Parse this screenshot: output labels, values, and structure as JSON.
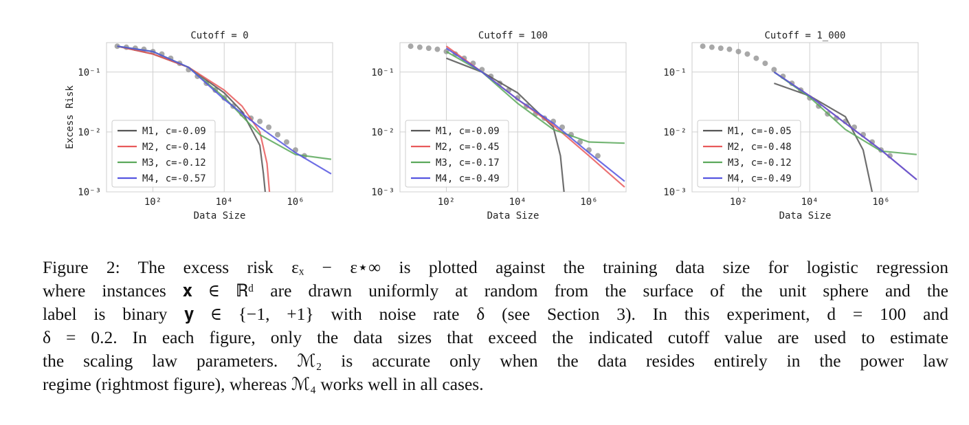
{
  "chart_data": [
    {
      "type": "line",
      "title": "Cutoff = 0",
      "xlabel": "Data Size",
      "ylabel": "Excess Risk",
      "xscale": "log",
      "yscale": "log",
      "grid": true,
      "legend": "lower left",
      "xlim": [
        5,
        11000000
      ],
      "ylim": [
        0.001,
        0.31
      ],
      "xticks": [
        {
          "value": 100,
          "label": "10²"
        },
        {
          "value": 10000,
          "label": "10⁴"
        },
        {
          "value": 1000000,
          "label": "10⁶"
        }
      ],
      "yticks": [
        {
          "value": 0.001,
          "label": "10⁻³"
        },
        {
          "value": 0.01,
          "label": "10⁻²"
        },
        {
          "value": 0.1,
          "label": "10⁻¹"
        }
      ],
      "points": {
        "color": "#999999",
        "x": [
          10,
          18,
          32,
          56,
          100,
          178,
          316,
          562,
          1000,
          1778,
          3162,
          5623,
          10000,
          17783,
          31623,
          56234,
          100000,
          177828,
          316228,
          562341,
          1000000,
          1778279
        ],
        "values": [
          0.27,
          0.26,
          0.25,
          0.24,
          0.22,
          0.2,
          0.17,
          0.14,
          0.11,
          0.085,
          0.065,
          0.05,
          0.037,
          0.027,
          0.02,
          0.017,
          0.015,
          0.012,
          0.009,
          0.0068,
          0.005,
          0.004
        ]
      },
      "series": [
        {
          "name": "M1, c=-0.09",
          "color": "#555555",
          "x": [
            10,
            100,
            1000,
            10000,
            31623,
            100000,
            125893,
            141254
          ],
          "values": [
            0.27,
            0.2,
            0.12,
            0.045,
            0.022,
            0.006,
            0.002,
            0.001
          ]
        },
        {
          "name": "M2, c=-0.14",
          "color": "#e8595a",
          "x": [
            10,
            100,
            1000,
            10000,
            31623,
            100000,
            158489,
            186209
          ],
          "values": [
            0.27,
            0.2,
            0.12,
            0.05,
            0.027,
            0.01,
            0.003,
            0.001
          ]
        },
        {
          "name": "M3, c=-0.12",
          "color": "#5aa85a",
          "x": [
            10,
            100,
            1000,
            10000,
            100000,
            1000000,
            10000000
          ],
          "values": [
            0.27,
            0.22,
            0.12,
            0.038,
            0.009,
            0.0042,
            0.0035
          ]
        },
        {
          "name": "M4, c=-0.57",
          "color": "#5555e0",
          "x": [
            10,
            100,
            1000,
            10000,
            100000,
            1000000,
            10000000
          ],
          "values": [
            0.27,
            0.22,
            0.12,
            0.035,
            0.012,
            0.0045,
            0.002
          ]
        }
      ]
    },
    {
      "type": "line",
      "title": "Cutoff = 100",
      "xlabel": "Data Size",
      "xscale": "log",
      "yscale": "log",
      "grid": true,
      "legend": "lower left",
      "xlim": [
        5,
        11000000
      ],
      "ylim": [
        0.001,
        0.31
      ],
      "xticks": [
        {
          "value": 100,
          "label": "10²"
        },
        {
          "value": 10000,
          "label": "10⁴"
        },
        {
          "value": 1000000,
          "label": "10⁶"
        }
      ],
      "yticks": [
        {
          "value": 0.001,
          "label": "10⁻³"
        },
        {
          "value": 0.01,
          "label": "10⁻²"
        },
        {
          "value": 0.1,
          "label": "10⁻¹"
        }
      ],
      "points": {
        "color": "#999999",
        "x": [
          10,
          18,
          32,
          56,
          100,
          178,
          316,
          562,
          1000,
          1778,
          3162,
          5623,
          10000,
          17783,
          31623,
          56234,
          100000,
          177828,
          316228,
          562341,
          1000000,
          1778279
        ],
        "values": [
          0.27,
          0.26,
          0.25,
          0.24,
          0.22,
          0.2,
          0.17,
          0.14,
          0.11,
          0.085,
          0.065,
          0.05,
          0.037,
          0.027,
          0.02,
          0.017,
          0.015,
          0.012,
          0.009,
          0.0068,
          0.005,
          0.004
        ]
      },
      "series": [
        {
          "name": "M1, c=-0.09",
          "color": "#555555",
          "x": [
            100,
            1000,
            10000,
            100000,
            158489,
            199526
          ],
          "values": [
            0.17,
            0.1,
            0.045,
            0.012,
            0.004,
            0.001
          ]
        },
        {
          "name": "M2, c=-0.45",
          "color": "#e8595a",
          "x": [
            100,
            1000,
            10000,
            100000,
            1000000,
            10000000
          ],
          "values": [
            0.27,
            0.1,
            0.035,
            0.013,
            0.004,
            0.0012
          ]
        },
        {
          "name": "M3, c=-0.17",
          "color": "#5aa85a",
          "x": [
            100,
            1000,
            10000,
            100000,
            1000000,
            10000000
          ],
          "values": [
            0.22,
            0.1,
            0.03,
            0.011,
            0.0068,
            0.0065
          ]
        },
        {
          "name": "M4, c=-0.49",
          "color": "#5555e0",
          "x": [
            100,
            1000,
            10000,
            100000,
            1000000,
            10000000
          ],
          "values": [
            0.25,
            0.1,
            0.035,
            0.014,
            0.0045,
            0.0015
          ]
        }
      ]
    },
    {
      "type": "line",
      "title": "Cutoff = 1_000",
      "xlabel": "Data Size",
      "xscale": "log",
      "yscale": "log",
      "grid": true,
      "legend": "lower left",
      "xlim": [
        5,
        11000000
      ],
      "ylim": [
        0.001,
        0.31
      ],
      "xticks": [
        {
          "value": 100,
          "label": "10²"
        },
        {
          "value": 10000,
          "label": "10⁴"
        },
        {
          "value": 1000000,
          "label": "10⁶"
        }
      ],
      "yticks": [
        {
          "value": 0.001,
          "label": "10⁻³"
        },
        {
          "value": 0.01,
          "label": "10⁻²"
        },
        {
          "value": 0.1,
          "label": "10⁻¹"
        }
      ],
      "points": {
        "color": "#999999",
        "x": [
          10,
          18,
          32,
          56,
          100,
          178,
          316,
          562,
          1000,
          1778,
          3162,
          5623,
          10000,
          17783,
          31623,
          56234,
          100000,
          177828,
          316228,
          562341,
          1000000,
          1778279
        ],
        "values": [
          0.27,
          0.26,
          0.25,
          0.24,
          0.22,
          0.2,
          0.17,
          0.14,
          0.11,
          0.085,
          0.065,
          0.05,
          0.037,
          0.027,
          0.02,
          0.017,
          0.015,
          0.012,
          0.009,
          0.0068,
          0.005,
          0.004
        ]
      },
      "series": [
        {
          "name": "M1, c=-0.05",
          "color": "#555555",
          "x": [
            1000,
            10000,
            100000,
            316228,
            562341
          ],
          "values": [
            0.065,
            0.04,
            0.018,
            0.005,
            0.001
          ]
        },
        {
          "name": "M2, c=-0.48",
          "color": "#e8595a",
          "x": [
            1000,
            10000,
            100000,
            1000000,
            10000000
          ],
          "values": [
            0.1,
            0.04,
            0.014,
            0.005,
            0.0016
          ]
        },
        {
          "name": "M3, c=-0.12",
          "color": "#5aa85a",
          "x": [
            1000,
            10000,
            100000,
            1000000,
            10000000
          ],
          "values": [
            0.1,
            0.038,
            0.011,
            0.0048,
            0.0042
          ]
        },
        {
          "name": "M4, c=-0.49",
          "color": "#5555e0",
          "x": [
            1000,
            10000,
            100000,
            1000000,
            10000000
          ],
          "values": [
            0.1,
            0.04,
            0.014,
            0.005,
            0.0016
          ]
        }
      ]
    }
  ],
  "caption": {
    "lines": [
      "Figure 2: The excess risk εₓ − ε⋆∞ is plotted against the training data size for logistic regression",
      "where instances 𝐱 ∈ ℝᵈ are drawn uniformly at random from the surface of the unit sphere and the",
      "label is binary 𝐲 ∈ {−1, +1} with noise rate δ (see Section 3). In this experiment, d = 100 and",
      "δ = 0.2. In each figure, only the data sizes that exceed the indicated cutoff value are used to estimate",
      "the scaling law parameters. ℳ₂ is accurate only when the data resides entirely in the power law",
      "regime (rightmost figure), whereas ℳ₄ works well in all cases."
    ]
  }
}
